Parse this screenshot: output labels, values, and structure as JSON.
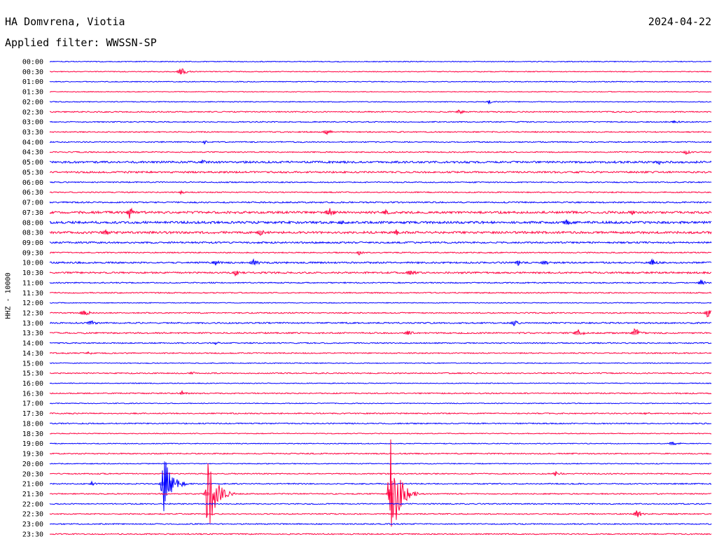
{
  "header": {
    "station": "HA Domvrena, Viotia",
    "date": "2024-04-22",
    "filter": "Applied filter: WWSSN-SP",
    "channel": "HHZ - 10000"
  },
  "chart_data": {
    "type": "line",
    "title": "HA Domvrena, Viotia",
    "ylabel": "HHZ - 10000",
    "trace_colors": [
      "#0000ff",
      "#ff0040"
    ],
    "row_labels": [
      "00:00",
      "00:30",
      "01:00",
      "01:30",
      "02:00",
      "02:30",
      "03:00",
      "03:30",
      "04:00",
      "04:30",
      "05:00",
      "05:30",
      "06:00",
      "06:30",
      "07:00",
      "07:30",
      "08:00",
      "08:30",
      "09:00",
      "09:30",
      "10:00",
      "10:30",
      "11:00",
      "11:30",
      "12:00",
      "12:30",
      "13:00",
      "13:30",
      "14:00",
      "14:30",
      "15:00",
      "15:30",
      "16:00",
      "16:30",
      "17:00",
      "17:30",
      "18:00",
      "18:30",
      "19:00",
      "19:30",
      "20:00",
      "20:30",
      "21:00",
      "21:30",
      "22:00",
      "22:30",
      "23:00",
      "23:30"
    ],
    "noise_levels": [
      0.6,
      0.6,
      0.6,
      0.5,
      0.6,
      0.8,
      0.8,
      0.8,
      0.8,
      0.8,
      1.4,
      1.2,
      0.8,
      0.8,
      1.0,
      1.6,
      1.6,
      1.6,
      1.2,
      0.8,
      1.2,
      1.2,
      0.8,
      0.8,
      0.6,
      0.8,
      1.0,
      1.0,
      0.8,
      0.8,
      0.6,
      0.8,
      0.6,
      0.8,
      0.6,
      0.8,
      0.8,
      0.6,
      0.6,
      0.8,
      0.6,
      0.8,
      0.8,
      0.8,
      0.8,
      0.8,
      0.8,
      0.8
    ],
    "events": [
      {
        "row": "00:30",
        "minute": 5.9,
        "amplitude": 7
      },
      {
        "row": "02:00",
        "minute": 19.9,
        "amplitude": 3
      },
      {
        "row": "02:30",
        "minute": 18.5,
        "amplitude": 4
      },
      {
        "row": "03:00",
        "minute": 28.3,
        "amplitude": 4
      },
      {
        "row": "03:30",
        "minute": 12.5,
        "amplitude": 5
      },
      {
        "row": "04:00",
        "minute": 7.0,
        "amplitude": 3
      },
      {
        "row": "04:30",
        "minute": 28.8,
        "amplitude": 4
      },
      {
        "row": "05:00",
        "minute": 6.9,
        "amplitude": 4
      },
      {
        "row": "05:00",
        "minute": 27.6,
        "amplitude": 4
      },
      {
        "row": "05:30",
        "minute": 4.6,
        "amplitude": 3
      },
      {
        "row": "05:30",
        "minute": 23.9,
        "amplitude": 3
      },
      {
        "row": "06:30",
        "minute": 5.9,
        "amplitude": 3
      },
      {
        "row": "07:30",
        "minute": 3.6,
        "amplitude": 10
      },
      {
        "row": "07:30",
        "minute": 12.6,
        "amplitude": 10
      },
      {
        "row": "07:30",
        "minute": 15.2,
        "amplitude": 5
      },
      {
        "row": "07:30",
        "minute": 26.4,
        "amplitude": 5
      },
      {
        "row": "08:00",
        "minute": 13.2,
        "amplitude": 5
      },
      {
        "row": "08:00",
        "minute": 23.4,
        "amplitude": 6
      },
      {
        "row": "08:30",
        "minute": 2.5,
        "amplitude": 6
      },
      {
        "row": "08:30",
        "minute": 9.5,
        "amplitude": 6
      },
      {
        "row": "08:30",
        "minute": 15.7,
        "amplitude": 5
      },
      {
        "row": "09:30",
        "minute": 14.0,
        "amplitude": 4
      },
      {
        "row": "10:00",
        "minute": 7.5,
        "amplitude": 5
      },
      {
        "row": "10:00",
        "minute": 9.2,
        "amplitude": 6
      },
      {
        "row": "10:00",
        "minute": 21.2,
        "amplitude": 5
      },
      {
        "row": "10:00",
        "minute": 22.4,
        "amplitude": 6
      },
      {
        "row": "10:00",
        "minute": 27.3,
        "amplitude": 6
      },
      {
        "row": "10:30",
        "minute": 8.4,
        "amplitude": 5
      },
      {
        "row": "10:30",
        "minute": 16.3,
        "amplitude": 6
      },
      {
        "row": "11:00",
        "minute": 29.5,
        "amplitude": 5
      },
      {
        "row": "12:30",
        "minute": 1.5,
        "amplitude": 7
      },
      {
        "row": "12:30",
        "minute": 29.8,
        "amplitude": 7
      },
      {
        "row": "13:00",
        "minute": 1.8,
        "amplitude": 5
      },
      {
        "row": "13:00",
        "minute": 21.0,
        "amplitude": 5
      },
      {
        "row": "13:30",
        "minute": 16.2,
        "amplitude": 5
      },
      {
        "row": "13:30",
        "minute": 23.9,
        "amplitude": 7
      },
      {
        "row": "13:30",
        "minute": 26.5,
        "amplitude": 8
      },
      {
        "row": "14:00",
        "minute": 7.5,
        "amplitude": 3
      },
      {
        "row": "14:30",
        "minute": 1.7,
        "amplitude": 3
      },
      {
        "row": "15:30",
        "minute": 6.4,
        "amplitude": 3
      },
      {
        "row": "16:30",
        "minute": 6.0,
        "amplitude": 4
      },
      {
        "row": "17:30",
        "minute": 27.0,
        "amplitude": 3
      },
      {
        "row": "19:00",
        "minute": 28.2,
        "amplitude": 5
      },
      {
        "row": "20:30",
        "minute": 22.9,
        "amplitude": 4
      },
      {
        "row": "21:00",
        "minute": 1.9,
        "amplitude": 4
      },
      {
        "row": "21:30",
        "minute": 7.1,
        "amplitude": 70
      },
      {
        "row": "21:30",
        "minute": 15.4,
        "amplitude": 95
      },
      {
        "row": "21:00",
        "minute": 5.1,
        "amplitude": 55
      },
      {
        "row": "22:30",
        "minute": 26.6,
        "amplitude": 6
      }
    ],
    "grid": false
  }
}
